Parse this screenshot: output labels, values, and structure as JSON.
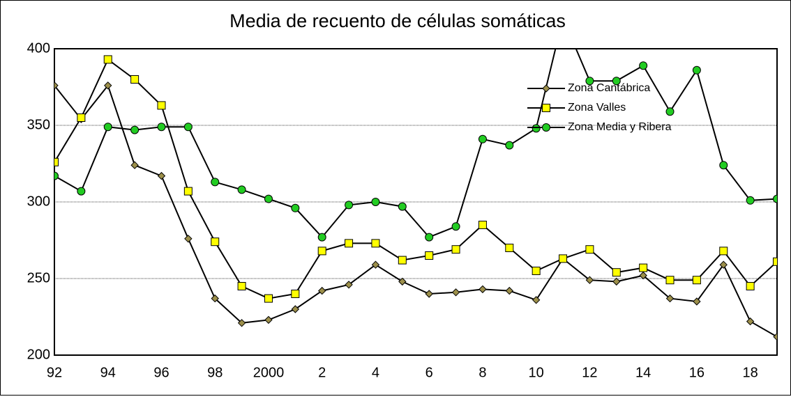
{
  "chart_data": {
    "type": "line",
    "title": "Media de recuento de células somáticas",
    "categories": [
      "92",
      null,
      "94",
      null,
      "96",
      null,
      "98",
      null,
      "2000",
      null,
      "2",
      null,
      "4",
      null,
      "6",
      null,
      "8",
      null,
      "10",
      null,
      "12",
      null,
      "14",
      null,
      "16",
      null,
      "18",
      null
    ],
    "series": [
      {
        "name": "Zona Cantábrica",
        "color": "#9c8f4a",
        "marker": "diamond",
        "values": [
          376,
          354,
          376,
          324,
          317,
          276,
          237,
          221,
          223,
          230,
          242,
          246,
          259,
          248,
          240,
          241,
          243,
          242,
          236,
          263,
          249,
          248,
          252,
          237,
          235,
          259,
          222,
          212
        ]
      },
      {
        "name": "Zona Valles",
        "color": "#ffff00",
        "marker": "square",
        "values": [
          326,
          355,
          393,
          380,
          363,
          307,
          274,
          245,
          237,
          240,
          268,
          273,
          273,
          262,
          265,
          269,
          285,
          270,
          255,
          263,
          269,
          254,
          257,
          249,
          249,
          268,
          245,
          261
        ]
      },
      {
        "name": "Zona Media y Ribera",
        "color": "#22cc22",
        "marker": "circle",
        "values": [
          317,
          307,
          349,
          347,
          349,
          349,
          313,
          308,
          302,
          296,
          277,
          298,
          300,
          297,
          277,
          284,
          341,
          337,
          348,
          420,
          379,
          379,
          389,
          359,
          386,
          324,
          301,
          302
        ]
      }
    ],
    "ylim": [
      200,
      400
    ],
    "yticks": [
      200,
      250,
      300,
      350,
      400
    ],
    "grid": true,
    "legend": "upper right"
  }
}
